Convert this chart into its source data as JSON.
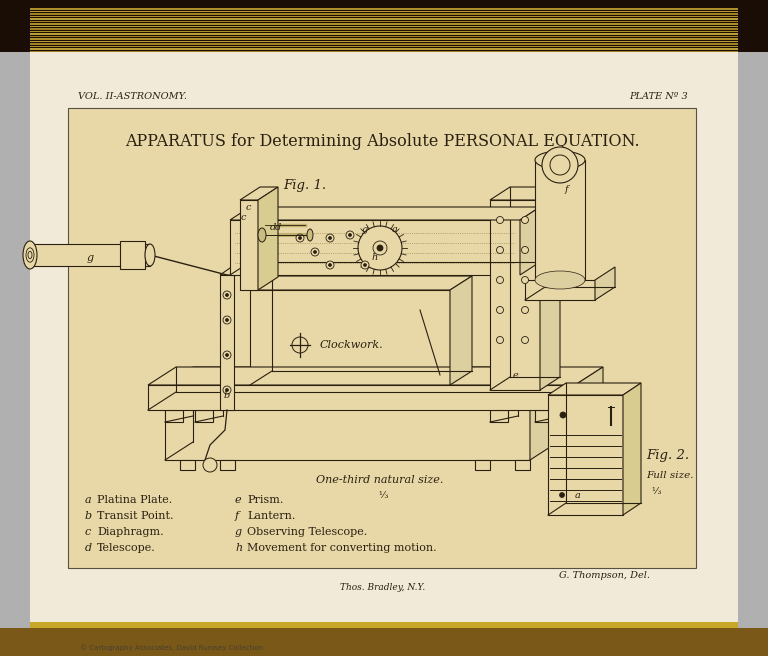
{
  "bg_outer": "#b0b0b0",
  "bg_spine": "#1a0d05",
  "bg_page": "#f2ead8",
  "bg_plate": "#e8d8a8",
  "border_color": "#5a5040",
  "line_color": "#2a2010",
  "text_color": "#2a2010",
  "title": "APPARATUS for Determining Absolute PERSONAL EQUATION.",
  "vol_label": "VOL. II-ASTRONOMY.",
  "plate_label": "PLATE Nº 3",
  "fig1_label": "Fig. 1.",
  "fig2_label": "Fig. 2.",
  "scale_label": "One-third natural size.",
  "scale_fraction": "⅓",
  "clockwork_label": "Clockwork.",
  "fullsize_label": "Full size.",
  "fullsize_fraction": "⅓",
  "credit": "G. Thompson, Del.",
  "publisher": "Thos. Bradley, N.Y.",
  "legend_items": [
    [
      "a",
      "Platina Plate.",
      "e",
      "Prism."
    ],
    [
      "b",
      "Transit Point.",
      "f",
      "Lantern."
    ],
    [
      "c",
      "Diaphragm.",
      "g",
      "Observing Telescope."
    ],
    [
      "d",
      "Telescope.",
      "h",
      "Movement for converting motion."
    ]
  ]
}
